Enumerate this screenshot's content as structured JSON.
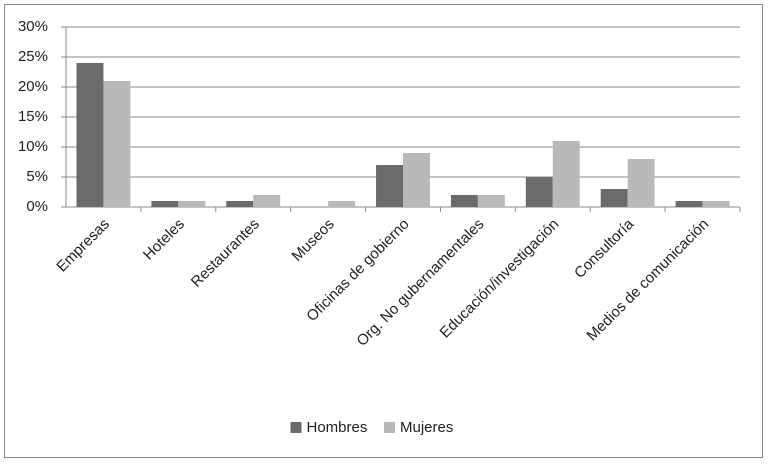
{
  "chart_data": {
    "type": "bar",
    "categories": [
      "Empresas",
      "Hoteles",
      "Restaurantes",
      "Museos",
      "Oficinas de gobierno",
      "Org. No gubernamentales",
      "Educación/investigación",
      "Consultoría",
      "Medios de comunicación"
    ],
    "series": [
      {
        "name": "Hombres",
        "color": "#6b6b6b",
        "values": [
          24,
          1,
          1,
          0,
          7,
          2,
          5,
          3,
          1
        ]
      },
      {
        "name": "Mujeres",
        "color": "#b9b9b9",
        "values": [
          21,
          1,
          2,
          1,
          9,
          2,
          11,
          8,
          1
        ]
      }
    ],
    "ylim": [
      0,
      30
    ],
    "yticks": [
      {
        "value": 0,
        "label": "0%"
      },
      {
        "value": 5,
        "label": "5%"
      },
      {
        "value": 10,
        "label": "10%"
      },
      {
        "value": 15,
        "label": "15%"
      },
      {
        "value": 20,
        "label": "20%"
      },
      {
        "value": 25,
        "label": "25%"
      },
      {
        "value": 30,
        "label": "30%"
      }
    ],
    "grid": true,
    "legend": "bottom"
  }
}
